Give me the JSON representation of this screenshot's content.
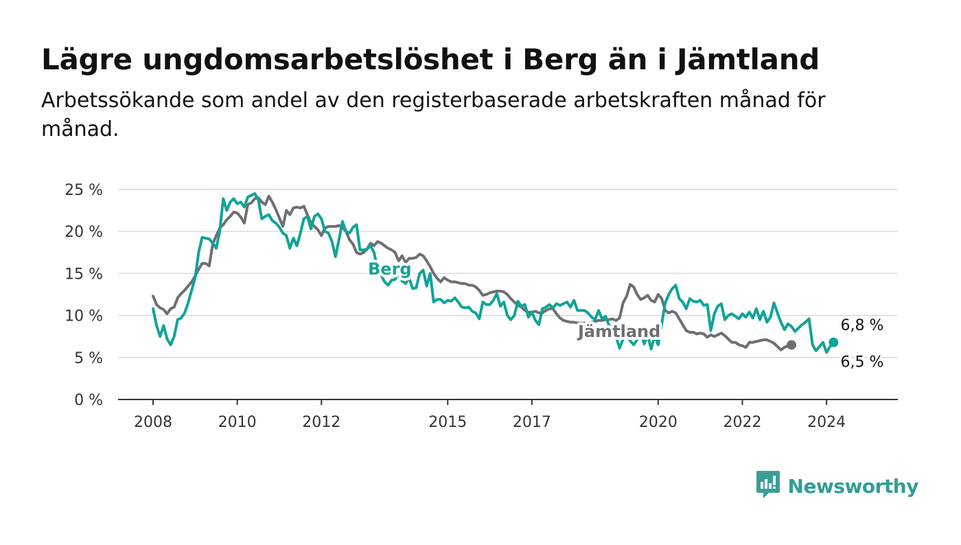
{
  "title": "Lägre ungdomsarbetslöshet i Berg än i Jämtland",
  "subtitle": "Arbetssökande som andel av den registerbaserade arbetskraften månad för månad.",
  "brand": {
    "name": "Newsworthy",
    "icon": "newsworthy-logo-icon",
    "color": "#3a9e96"
  },
  "chart_data": {
    "type": "line",
    "x_start": "2008-01",
    "x_step": "month",
    "ylim": [
      0,
      25
    ],
    "y_ticks": [
      0,
      5,
      10,
      15,
      20,
      25
    ],
    "y_tick_labels": [
      "0 %",
      "5 %",
      "10 %",
      "15 %",
      "20 %",
      "25 %"
    ],
    "x_ticks": [
      {
        "label": "2008",
        "date": "2008-01"
      },
      {
        "label": "2010",
        "date": "2010-01"
      },
      {
        "label": "2012",
        "date": "2012-01"
      },
      {
        "label": "2015",
        "date": "2015-01"
      },
      {
        "label": "2017",
        "date": "2017-01"
      },
      {
        "label": "2020",
        "date": "2020-01"
      },
      {
        "label": "2022",
        "date": "2022-01"
      },
      {
        "label": "2024",
        "date": "2024-01"
      }
    ],
    "grid": true,
    "series": [
      {
        "name": "Jämtland",
        "color": "#6e6e73",
        "end_label": "6,5 %",
        "values": [
          12.3,
          11.3,
          10.9,
          10.7,
          10.2,
          10.8,
          11.0,
          12.1,
          12.6,
          13.0,
          13.5,
          14.0,
          14.7,
          15.5,
          16.2,
          16.2,
          15.9,
          18.5,
          19.5,
          20.4,
          20.8,
          21.4,
          21.8,
          22.3,
          22.2,
          21.7,
          21.0,
          23.2,
          23.4,
          23.9,
          24.0,
          23.5,
          23.2,
          24.2,
          23.5,
          22.6,
          21.6,
          20.6,
          22.5,
          22.0,
          22.8,
          22.9,
          22.8,
          23.0,
          22.0,
          21.0,
          20.6,
          20.2,
          19.5,
          20.4,
          20.6,
          20.6,
          20.6,
          20.7,
          20.5,
          20.0,
          19.0,
          18.5,
          17.5,
          17.3,
          17.5,
          17.9,
          18.6,
          18.3,
          18.8,
          18.6,
          18.3,
          18.0,
          17.8,
          17.5,
          16.5,
          17.1,
          16.3,
          16.8,
          16.8,
          16.9,
          17.3,
          17.1,
          16.5,
          15.8,
          15.0,
          14.4,
          14.0,
          14.5,
          14.2,
          14.0,
          14.0,
          13.9,
          13.8,
          13.8,
          13.6,
          13.6,
          13.4,
          13.0,
          12.4,
          12.5,
          12.7,
          12.8,
          12.9,
          12.9,
          12.8,
          12.5,
          12.0,
          11.6,
          11.2,
          11.0,
          10.6,
          10.4,
          10.4,
          10.5,
          10.3,
          10.3,
          10.6,
          10.8,
          10.8,
          10.2,
          9.7,
          9.4,
          9.3,
          9.2,
          9.2,
          9.1,
          9.1,
          9.1,
          9.1,
          9.2,
          9.3,
          9.4,
          9.4,
          9.5,
          9.5,
          9.6,
          9.4,
          9.7,
          11.5,
          12.3,
          13.7,
          13.4,
          12.5,
          11.9,
          12.1,
          12.4,
          11.8,
          11.6,
          12.5,
          12.0,
          10.6,
          10.3,
          10.5,
          10.3,
          9.6,
          8.9,
          8.2,
          8.0,
          8.0,
          7.8,
          7.9,
          7.8,
          7.4,
          7.7,
          7.5,
          7.7,
          7.9,
          7.6,
          7.2,
          6.8,
          6.8,
          6.5,
          6.4,
          6.2,
          6.8,
          6.8,
          6.9,
          7.0,
          7.1,
          7.1,
          6.9,
          6.7,
          6.3,
          5.9,
          6.2,
          6.4,
          6.5
        ]
      },
      {
        "name": "Berg",
        "color": "#11a398",
        "end_label": "6,8 %",
        "values": [
          10.8,
          8.8,
          7.5,
          8.8,
          7.2,
          6.5,
          7.5,
          9.5,
          9.7,
          10.3,
          11.5,
          13.0,
          14.5,
          17.5,
          19.3,
          19.2,
          19.1,
          18.6,
          18.0,
          20.0,
          23.9,
          22.5,
          23.5,
          23.9,
          23.3,
          23.5,
          22.9,
          24.1,
          24.3,
          24.5,
          23.8,
          21.5,
          21.8,
          22.0,
          21.3,
          21.0,
          20.5,
          19.8,
          19.5,
          18.0,
          19.2,
          18.3,
          19.8,
          21.5,
          21.8,
          20.3,
          21.8,
          22.1,
          21.5,
          20.0,
          19.8,
          18.8,
          17.0,
          19.0,
          21.2,
          20.0,
          19.8,
          20.5,
          20.8,
          17.8,
          17.8,
          17.9,
          18.3,
          17.5,
          15.5,
          14.8,
          14.0,
          13.6,
          14.2,
          14.3,
          15.0,
          14.1,
          13.8,
          14.5,
          13.2,
          13.3,
          15.0,
          15.4,
          13.5,
          15.0,
          11.6,
          11.9,
          11.9,
          11.5,
          11.8,
          11.7,
          12.1,
          11.6,
          11.0,
          10.9,
          11.0,
          10.5,
          10.3,
          9.6,
          11.6,
          11.3,
          11.3,
          11.8,
          12.6,
          11.1,
          11.6,
          10.0,
          9.5,
          10.0,
          11.7,
          11.1,
          11.3,
          9.8,
          10.4,
          9.4,
          8.9,
          10.8,
          11.0,
          11.3,
          10.9,
          11.4,
          11.2,
          11.4,
          11.6,
          11.0,
          11.8,
          10.6,
          10.6,
          10.6,
          10.3,
          9.8,
          9.5,
          10.6,
          9.6,
          9.9,
          8.8,
          8.5,
          7.5,
          6.1,
          7.2,
          7.5,
          7.0,
          6.5,
          7.1,
          8.4,
          6.6,
          7.7,
          6.0,
          7.6,
          6.5,
          9.0,
          11.5,
          12.5,
          13.2,
          13.6,
          12.0,
          11.6,
          10.8,
          12.0,
          11.7,
          11.6,
          11.8,
          11.2,
          11.3,
          8.2,
          10.2,
          11.1,
          11.4,
          9.5,
          10.0,
          10.2,
          9.9,
          9.6,
          10.2,
          9.8,
          10.4,
          9.7,
          10.8,
          9.5,
          10.5,
          9.2,
          9.8,
          11.5,
          10.3,
          9.2,
          8.3,
          9.0,
          8.7,
          8.1,
          8.5,
          8.9,
          9.2,
          9.6,
          6.5,
          5.8,
          6.3,
          6.8,
          5.6,
          6.3,
          6.8
        ]
      }
    ],
    "series_labels": [
      {
        "series": "Berg",
        "text": "Berg"
      },
      {
        "series": "Jämtland",
        "text": "Jämtland"
      }
    ]
  }
}
